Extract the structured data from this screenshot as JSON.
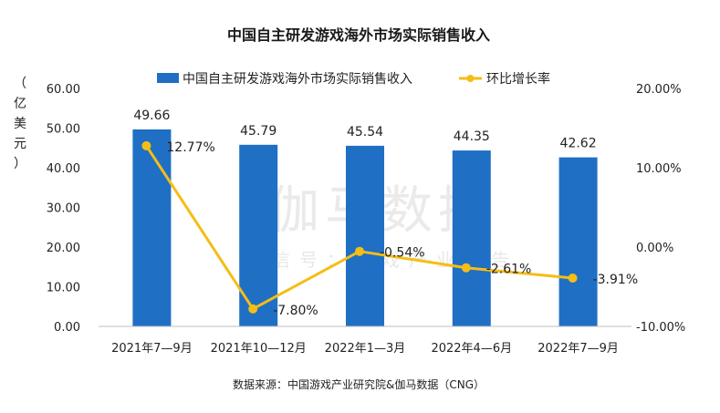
{
  "chart_data": {
    "type": "bar",
    "title": "中国自主研发游戏海外市场实际销售收入",
    "categories": [
      "2021年7—9月",
      "2021年10—12月",
      "2022年1—3月",
      "2022年4—6月",
      "2022年7—9月"
    ],
    "series": [
      {
        "name": "中国自主研发游戏海外市场实际销售收入",
        "type": "bar",
        "axis": "left",
        "values": [
          49.66,
          45.79,
          45.54,
          44.35,
          42.62
        ],
        "labels": [
          "49.66",
          "45.79",
          "45.54",
          "44.35",
          "42.62"
        ],
        "color": "#1f6fc5"
      },
      {
        "name": "环比增长率",
        "type": "line",
        "axis": "right",
        "values": [
          12.77,
          -7.8,
          -0.54,
          -2.61,
          -3.91
        ],
        "labels": [
          "12.77%",
          "-7.80%",
          "-0.54%",
          "-2.61%",
          "-3.91%"
        ],
        "color": "#f5bd16"
      }
    ],
    "y_left": {
      "label_chars": [
        "（",
        "亿",
        "美",
        "元",
        "）"
      ],
      "range": [
        0,
        60
      ],
      "ticks": [
        "0.00",
        "10.00",
        "20.00",
        "30.00",
        "40.00",
        "50.00",
        "60.00"
      ]
    },
    "y_right": {
      "range": [
        -10,
        20
      ],
      "ticks": [
        "-10.00%",
        "0.00%",
        "10.00%",
        "20.00%"
      ]
    },
    "grid": false,
    "legend_position": "top",
    "source": "数据来源：中国游戏产业研究院&伽马数据（CNG）"
  },
  "watermark": {
    "main": "伽马数据",
    "sub": "微信号：游戏产业报告"
  }
}
